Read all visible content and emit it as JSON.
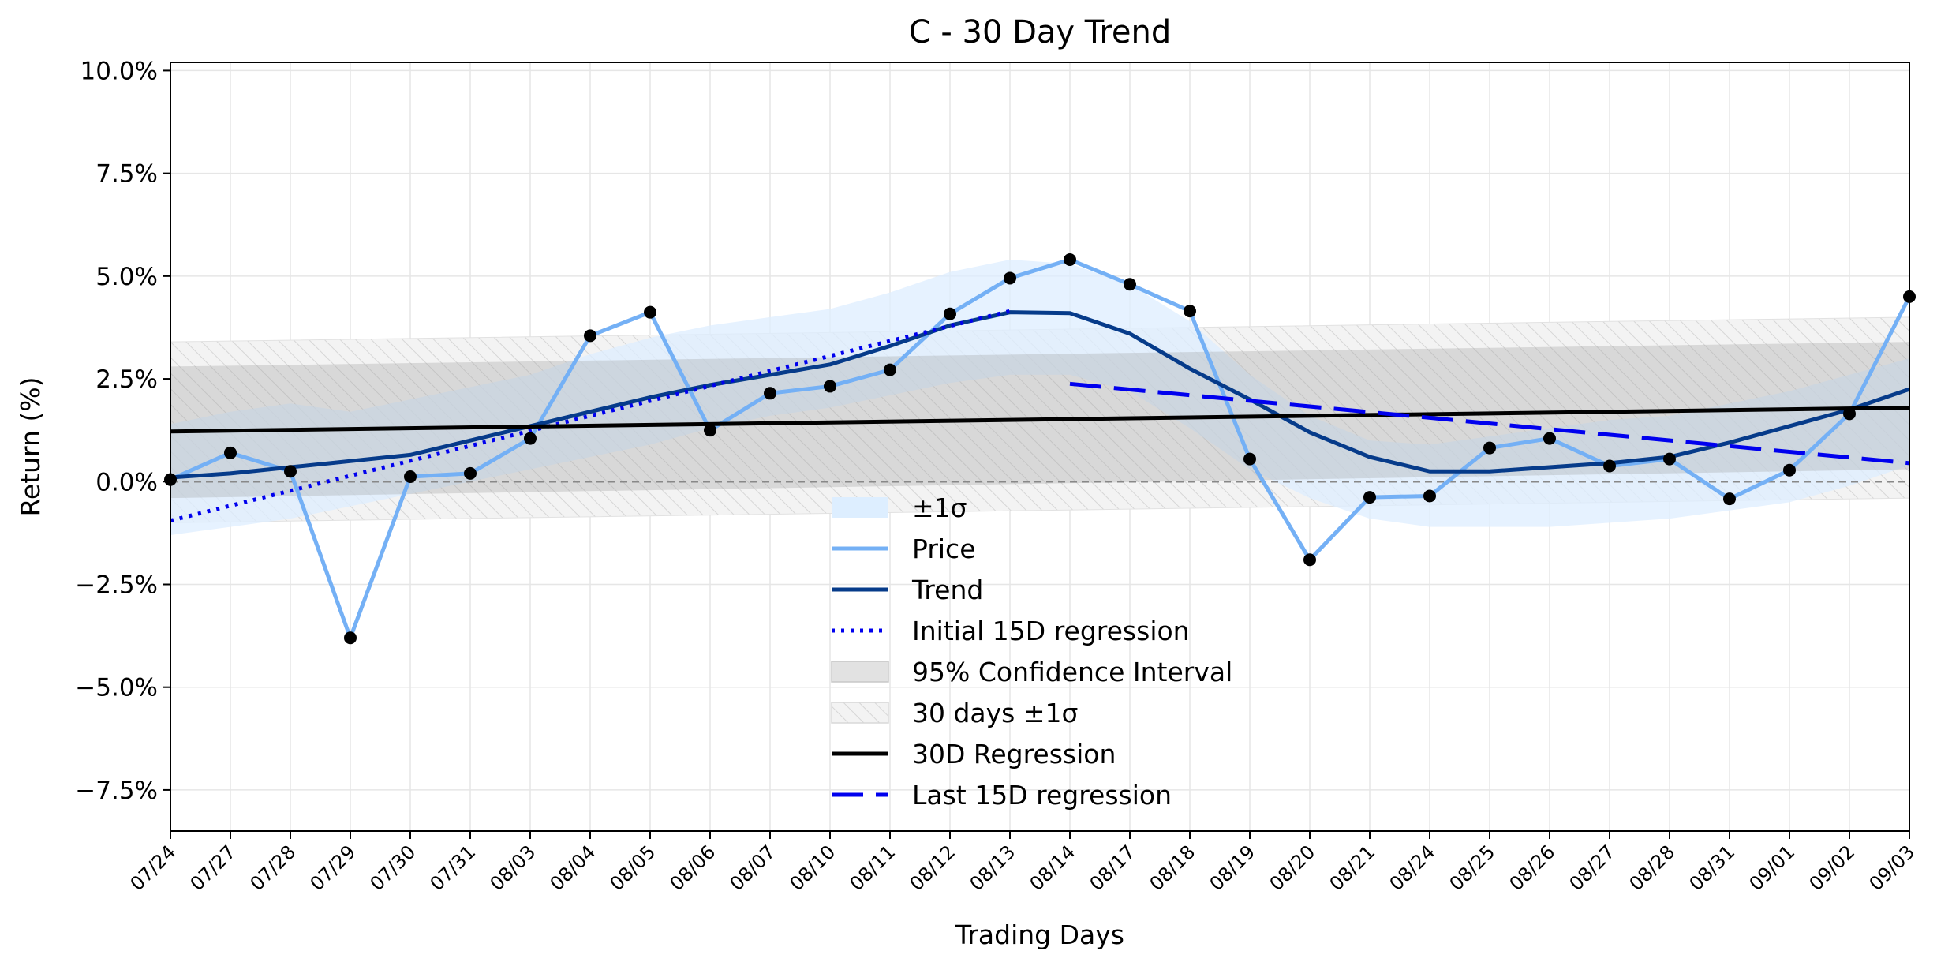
{
  "chart_data": {
    "type": "line",
    "title": "C - 30 Day Trend",
    "xlabel": "Trading Days",
    "ylabel": "Return (%)",
    "ylim": [
      -8.5,
      10.2
    ],
    "yticks": [
      10.0,
      7.5,
      5.0,
      2.5,
      0.0,
      -2.5,
      -5.0,
      -7.5
    ],
    "ytick_labels": [
      "10.0%",
      "7.5%",
      "5.0%",
      "2.5%",
      "0.0%",
      "−2.5%",
      "−5.0%",
      "−7.5%"
    ],
    "categories": [
      "07/24",
      "07/27",
      "07/28",
      "07/29",
      "07/30",
      "07/31",
      "08/03",
      "08/04",
      "08/05",
      "08/06",
      "08/07",
      "08/10",
      "08/11",
      "08/12",
      "08/13",
      "08/14",
      "08/17",
      "08/18",
      "08/19",
      "08/20",
      "08/21",
      "08/24",
      "08/25",
      "08/26",
      "08/27",
      "08/28",
      "08/31",
      "09/01",
      "09/02",
      "09/03"
    ],
    "grid": true,
    "zero_line": true,
    "legend_position": "lower center",
    "series": [
      {
        "name": "Price",
        "color": "#74b0f5",
        "values": [
          0.05,
          0.7,
          0.25,
          -3.8,
          0.12,
          0.2,
          1.05,
          3.55,
          4.12,
          1.25,
          2.15,
          2.32,
          2.72,
          4.08,
          4.95,
          5.4,
          4.8,
          4.15,
          0.55,
          -1.9,
          -0.38,
          -0.35,
          0.82,
          1.05,
          0.38,
          0.55,
          -0.42,
          0.28,
          1.65,
          4.5
        ]
      },
      {
        "name": "Trend",
        "color": "#063b8a",
        "values": [
          0.1,
          0.2,
          0.35,
          0.5,
          0.65,
          1.0,
          1.35,
          1.7,
          2.05,
          2.35,
          2.6,
          2.85,
          3.3,
          3.8,
          4.12,
          4.1,
          3.6,
          2.75,
          2.0,
          1.2,
          0.6,
          0.25,
          0.25,
          0.35,
          0.45,
          0.6,
          0.95,
          1.35,
          1.75,
          2.25
        ]
      },
      {
        "name": "Initial 15D regression",
        "color": "#0000ee",
        "style": "dotted",
        "x_range": [
          0,
          14
        ],
        "y_range": [
          -0.95,
          4.15
        ]
      },
      {
        "name": "30D Regression",
        "color": "#000000",
        "style": "solid",
        "x_range": [
          0,
          29
        ],
        "y_range": [
          1.22,
          1.8
        ]
      },
      {
        "name": "Last 15D regression",
        "color": "#0000ee",
        "style": "dashed",
        "x_range": [
          15,
          29
        ],
        "y_range": [
          2.38,
          0.45
        ]
      }
    ],
    "bands": [
      {
        "name": "±1σ",
        "color": "#ddeeff",
        "upper": [
          1.4,
          1.7,
          1.9,
          1.7,
          2.0,
          2.3,
          2.6,
          3.1,
          3.5,
          3.8,
          4.0,
          4.2,
          4.6,
          5.1,
          5.4,
          5.3,
          4.8,
          3.9,
          2.6,
          1.6,
          1.0,
          0.9,
          1.1,
          1.3,
          1.5,
          1.6,
          1.9,
          2.2,
          2.6,
          3.0
        ],
        "lower": [
          -1.3,
          -1.1,
          -0.9,
          -0.6,
          -0.3,
          0.0,
          0.3,
          0.6,
          0.9,
          1.3,
          1.6,
          1.8,
          2.1,
          2.4,
          2.6,
          2.6,
          2.2,
          1.3,
          0.3,
          -0.4,
          -0.9,
          -1.1,
          -1.1,
          -1.1,
          -1.0,
          -0.9,
          -0.7,
          -0.5,
          -0.1,
          0.4
        ]
      },
      {
        "name": "95% Confidence Interval",
        "color": "#d4d4d4",
        "upper_start": 2.8,
        "upper_end": 3.4,
        "lower_start": -0.4,
        "lower_end": 0.3
      },
      {
        "name": "30 days ±1σ",
        "color": "#eeeeee",
        "hatch": true,
        "upper_start": 3.4,
        "upper_end": 4.0,
        "lower_start": -1.0,
        "lower_end": -0.4
      }
    ]
  }
}
